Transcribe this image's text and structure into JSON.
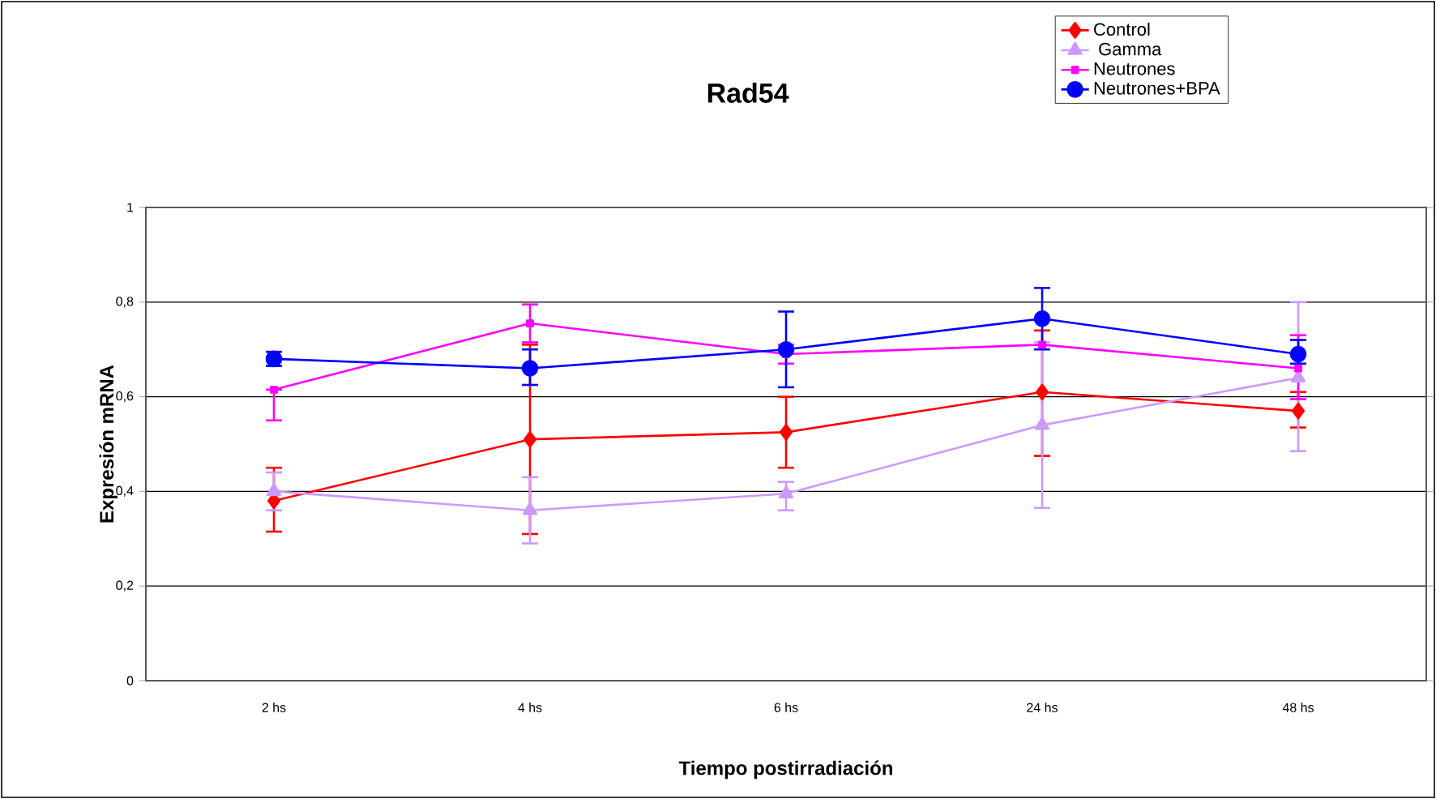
{
  "chart_data": {
    "type": "line",
    "title": "Rad54",
    "xlabel": "Tiempo postirradiación",
    "ylabel": "Expresión mRNA",
    "categories": [
      "2 hs",
      "4 hs",
      "6 hs",
      "24 hs",
      "48 hs"
    ],
    "ylim": [
      0,
      1
    ],
    "yticks": [
      0,
      {
        "value": 0.2,
        "label": "0,2"
      },
      {
        "value": 0.4,
        "label": "0,4"
      },
      {
        "value": 0.6,
        "label": "0,6"
      },
      {
        "value": 0.8,
        "label": "0,8"
      },
      1
    ],
    "grid": "y",
    "legend": "top right",
    "line_style": "solid",
    "series": [
      {
        "name": "Control",
        "color": "#ff0000",
        "marker": "diamond",
        "values": [
          0.38,
          0.51,
          0.525,
          0.61,
          0.57
        ],
        "errors": [
          [
            0.315,
            0.45
          ],
          [
            0.31,
            0.71
          ],
          [
            0.45,
            0.6
          ],
          [
            0.475,
            0.74
          ],
          [
            0.535,
            0.61
          ]
        ]
      },
      {
        "name": " Gamma",
        "color": "#cc99ff",
        "marker": "triangle",
        "values": [
          0.4,
          0.36,
          0.395,
          0.54,
          0.64
        ],
        "errors": [
          [
            0.36,
            0.44
          ],
          [
            0.29,
            0.43
          ],
          [
            0.36,
            0.42
          ],
          [
            0.365,
            0.715
          ],
          [
            0.485,
            0.8
          ]
        ]
      },
      {
        "name": "Neutrones",
        "color": "#ff00ff",
        "marker": "square",
        "values": [
          0.615,
          0.755,
          0.69,
          0.71,
          0.66
        ],
        "errors": [
          [
            0.55,
            0.615
          ],
          [
            0.715,
            0.795
          ],
          [
            0.67,
            0.71
          ],
          null,
          [
            0.595,
            0.73
          ]
        ]
      },
      {
        "name": "Neutrones+BPA",
        "color": "#0000ff",
        "marker": "circle",
        "values": [
          0.68,
          0.66,
          0.7,
          0.765,
          0.69
        ],
        "errors": [
          [
            0.665,
            0.695
          ],
          [
            0.625,
            0.7
          ],
          [
            0.62,
            0.78
          ],
          [
            0.7,
            0.83
          ],
          [
            0.67,
            0.72
          ]
        ]
      }
    ]
  }
}
